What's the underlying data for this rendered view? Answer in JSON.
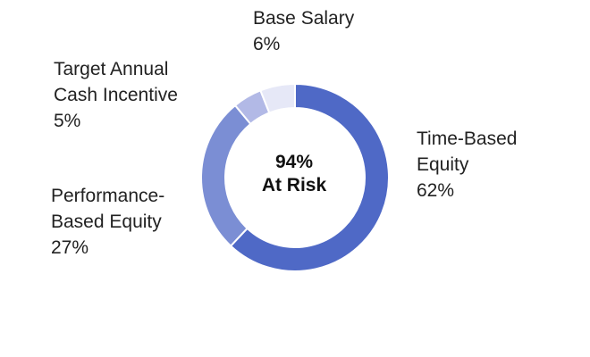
{
  "chart_data": {
    "type": "pie",
    "variant": "donut",
    "center_label": {
      "line1": "94%",
      "line2": "At Risk"
    },
    "slices": [
      {
        "name": "Time-Based Equity",
        "label_lines": [
          "Time-Based",
          "Equity"
        ],
        "value": 62,
        "value_label": "62%",
        "color": "#4f69c6"
      },
      {
        "name": "Performance-Based Equity",
        "label_lines": [
          "Performance-",
          "Based Equity"
        ],
        "value": 27,
        "value_label": "27%",
        "color": "#7b8ed4"
      },
      {
        "name": "Target Annual Cash Incentive",
        "label_lines": [
          "Target Annual",
          "Cash Incentive"
        ],
        "value": 5,
        "value_label": "5%",
        "color": "#b2b9e6"
      },
      {
        "name": "Base Salary",
        "label_lines": [
          "Base Salary"
        ],
        "value": 6,
        "value_label": "6%",
        "color": "#e6e8f7"
      }
    ]
  }
}
